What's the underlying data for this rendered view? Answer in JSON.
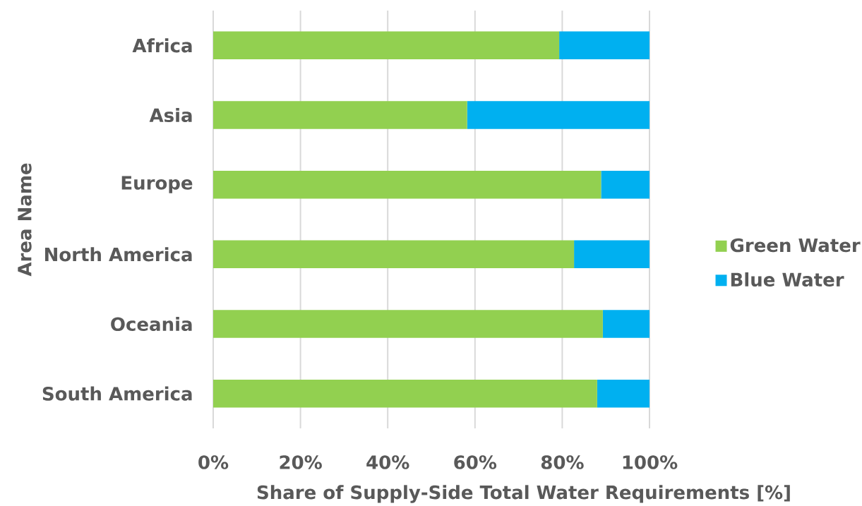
{
  "chart_data": {
    "type": "bar",
    "orientation": "horizontal",
    "stacked": true,
    "categories": [
      "Africa",
      "Asia",
      "Europe",
      "North America",
      "Oceania",
      "South America"
    ],
    "series": [
      {
        "name": "Green Water",
        "color": "#92d050",
        "values": [
          79.3,
          58.2,
          88.9,
          82.7,
          89.3,
          88.0
        ]
      },
      {
        "name": "Blue Water",
        "color": "#00b0f0",
        "values": [
          20.7,
          41.8,
          11.1,
          17.3,
          10.7,
          12.0
        ]
      }
    ],
    "xlabel": "Share of Supply-Side Total Water Requirements [%]",
    "ylabel": "Area Name",
    "xlim": [
      0,
      100
    ],
    "xticks": [
      {
        "value": 0,
        "label": "0%"
      },
      {
        "value": 20,
        "label": "20%"
      },
      {
        "value": 40,
        "label": "40%"
      },
      {
        "value": 60,
        "label": "60%"
      },
      {
        "value": 80,
        "label": "80%"
      },
      {
        "value": 100,
        "label": "100%"
      }
    ],
    "grid": "x",
    "legend": "right"
  }
}
